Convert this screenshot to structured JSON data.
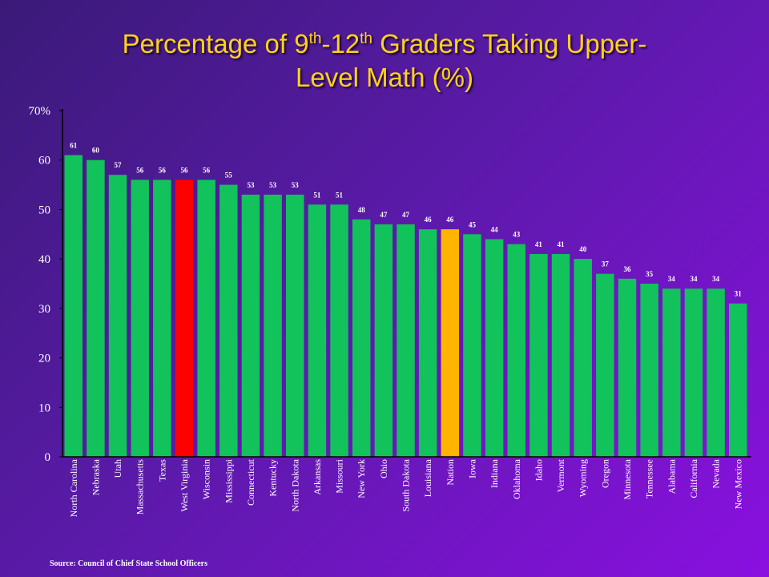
{
  "title": {
    "line1_a": "Percentage of 9",
    "sup1": "th",
    "line1_b": "-12",
    "sup2": "th",
    "line1_c": " Graders Taking Upper-",
    "line2": "Level Math (%)"
  },
  "source": "Source: Council of Chief State School Officers",
  "colors": {
    "bar": "#12c25a",
    "highlight_state": "#ff0000",
    "nation": "#ffb400",
    "text": "#ffffff",
    "title": "#ffd21a"
  },
  "chart_data": {
    "type": "bar",
    "title": "Percentage of 9th-12th Graders Taking Upper-Level Math (%)",
    "xlabel": "",
    "ylabel": "",
    "ylim": [
      0,
      70
    ],
    "yticks": [
      "0",
      "10",
      "20",
      "30",
      "40",
      "50",
      "60",
      "70%"
    ],
    "grid": false,
    "categories": [
      "North Carolina",
      "Nebraska",
      "Utah",
      "Massachusetts",
      "Texas",
      "West Virginia",
      "Wisconsin",
      "Mississippi",
      "Connecticut",
      "Kentucky",
      "North Dakota",
      "Arkansas",
      "Missouri",
      "New York",
      "Ohio",
      "South Dakota",
      "Louisiana",
      "Nation",
      "Iowa",
      "Indiana",
      "Oklahoma",
      "Idaho",
      "Vermont",
      "Wyoming",
      "Oregon",
      "Minnesota",
      "Tennessee",
      "Alabama",
      "California",
      "Nevada",
      "New Mexico"
    ],
    "values": [
      61,
      60,
      57,
      56,
      56,
      56,
      56,
      55,
      53,
      53,
      53,
      51,
      51,
      48,
      47,
      47,
      46,
      46,
      45,
      44,
      43,
      41,
      41,
      40,
      37,
      36,
      35,
      34,
      34,
      34,
      31
    ],
    "highlighted": {
      "West Virginia": "highlight_state",
      "Nation": "nation"
    }
  }
}
